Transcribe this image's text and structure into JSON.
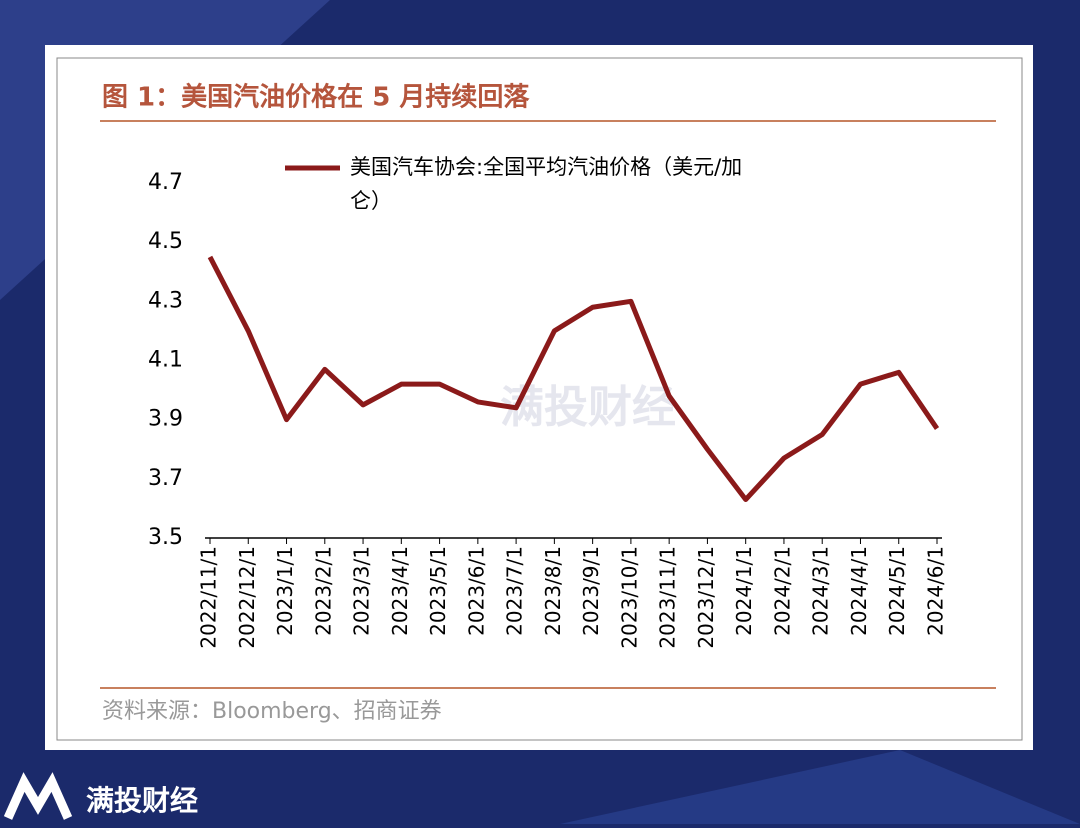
{
  "chart_data": {
    "type": "line",
    "title": "图 1：美国汽油价格在 5 月持续回落",
    "source": "资料来源：Bloomberg、招商证券",
    "watermark": "满投财经",
    "brand": "满投财经",
    "categories": [
      "2022/11/1",
      "2022/12/1",
      "2023/1/1",
      "2023/2/1",
      "2023/3/1",
      "2023/4/1",
      "2023/5/1",
      "2023/6/1",
      "2023/7/1",
      "2023/8/1",
      "2023/9/1",
      "2023/10/1",
      "2023/11/1",
      "2023/12/1",
      "2024/1/1",
      "2024/2/1",
      "2024/3/1",
      "2024/4/1",
      "2024/5/1",
      "2024/6/1"
    ],
    "series": [
      {
        "name": "美国汽车协会:全国平均汽油价格（美元/加仑）",
        "color": "#8b1a1a",
        "values": [
          4.45,
          4.2,
          3.9,
          4.07,
          3.95,
          4.02,
          4.02,
          3.96,
          3.94,
          4.2,
          4.28,
          4.3,
          3.98,
          3.8,
          3.63,
          3.77,
          3.85,
          4.02,
          4.06,
          3.87
        ]
      }
    ],
    "ylim": [
      3.5,
      4.7
    ],
    "yticks": [
      3.5,
      3.7,
      3.9,
      4.1,
      4.3,
      4.5,
      4.7
    ],
    "grid": false
  }
}
